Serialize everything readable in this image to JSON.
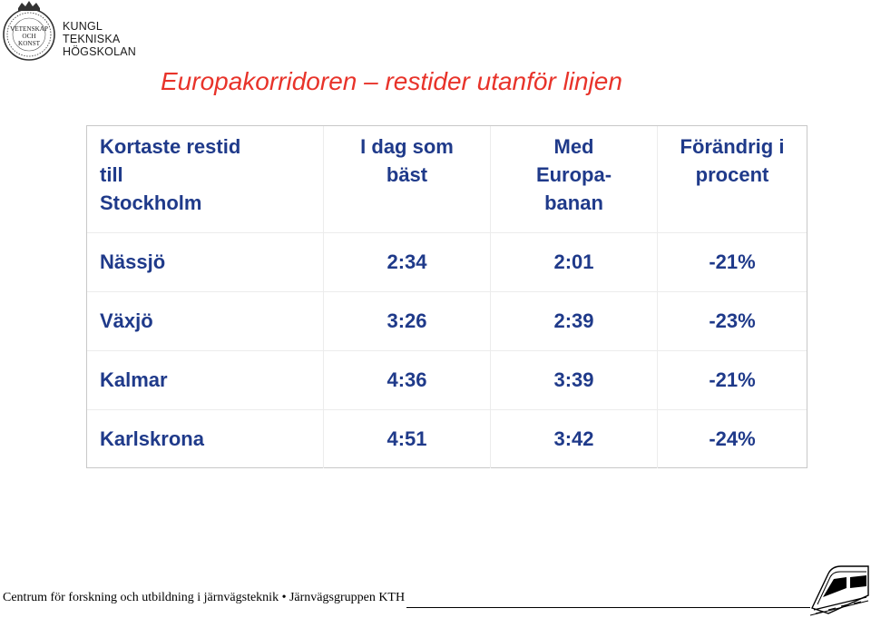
{
  "logo": {
    "seal_text": [
      "VETENSKAP",
      "OCH",
      "KONST"
    ],
    "wordmark": [
      "KUNGL",
      "TEKNISKA",
      "HÖGSKOLAN"
    ]
  },
  "title": "Europakorridoren – restider utanför linjen",
  "table": {
    "headers": [
      [
        "Kortaste restid",
        "till",
        "Stockholm"
      ],
      [
        "I dag som",
        "bäst"
      ],
      [
        "Med",
        "Europa-",
        "banan"
      ],
      [
        "Förändrig i",
        "procent"
      ]
    ],
    "rows": [
      [
        "Nässjö",
        "2:34",
        "2:01",
        "-21%"
      ],
      [
        "Växjö",
        "3:26",
        "2:39",
        "-23%"
      ],
      [
        "Kalmar",
        "4:36",
        "3:39",
        "-21%"
      ],
      [
        "Karlskrona",
        "4:51",
        "3:42",
        "-24%"
      ]
    ]
  },
  "footer": "Centrum för forskning och utbildning i järnvägsteknik • Järnvägsgruppen KTH",
  "colors": {
    "title": "#e8332a",
    "table_text": "#1f3a8a"
  },
  "icons": {
    "seal": "kth-seal-icon",
    "train": "train-icon"
  }
}
